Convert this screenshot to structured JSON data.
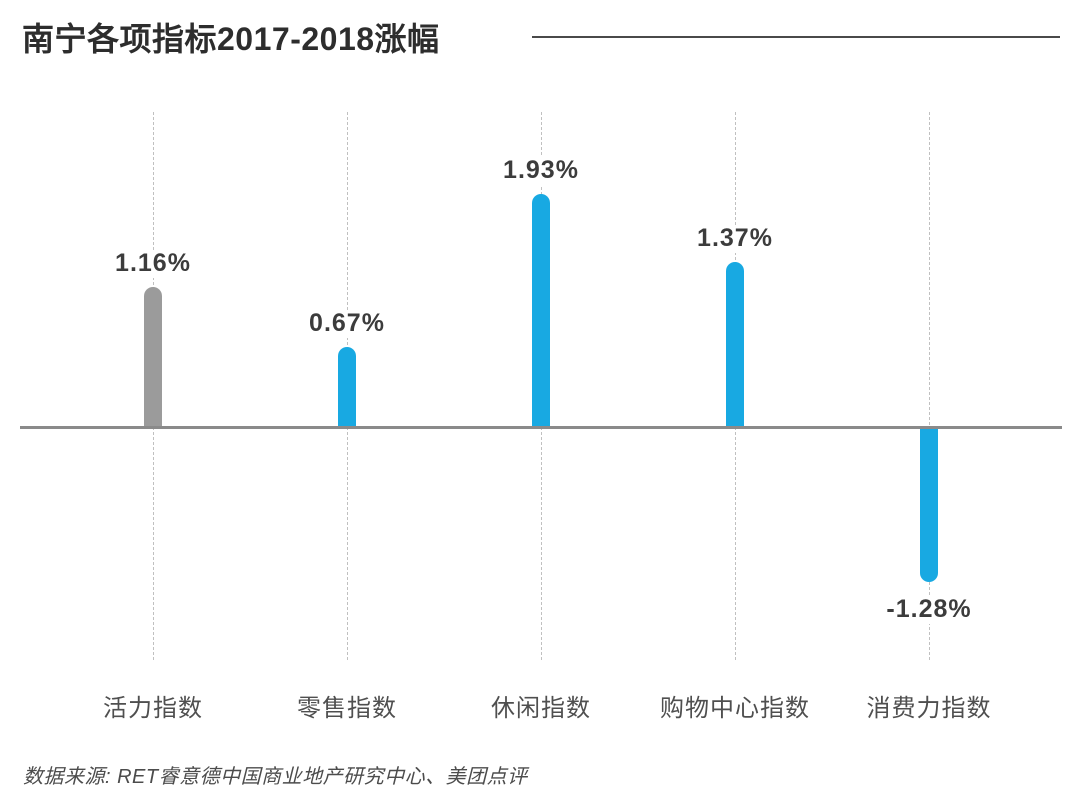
{
  "page": {
    "title": "南宁各项指标2017-2018涨幅",
    "source": "数据来源: RET睿意德中国商业地产研究中心、美团点评"
  },
  "colors": {
    "bar_blue": "#18a9e2",
    "bar_gray": "#9b9b9b",
    "axis_line": "#8a8a8a",
    "title_rule": "#4a4a4a",
    "grid_dash": "#c0c0c0",
    "title_text": "#2d2d2d",
    "value_text": "#3c3c3c",
    "category_text": "#4f4f4f",
    "source_text": "#4c4c4c"
  },
  "chart_data": {
    "type": "bar",
    "title": "南宁各项指标2017-2018涨幅",
    "categories": [
      "活力指数",
      "零售指数",
      "休闲指数",
      "购物中心指数",
      "消费力指数"
    ],
    "values": [
      1.16,
      0.67,
      1.93,
      1.37,
      -1.28
    ],
    "value_labels": [
      "1.16%",
      "0.67%",
      "1.93%",
      "1.37%",
      "-1.28%"
    ],
    "bar_colors": [
      "#9b9b9b",
      "#18a9e2",
      "#18a9e2",
      "#18a9e2",
      "#18a9e2"
    ],
    "unit": "%",
    "baseline": 0,
    "ylim": [
      -1.5,
      2.2
    ],
    "xlabel": "",
    "ylabel": "",
    "grid": "vertical-dashed",
    "legend": "none",
    "source": "数据来源: RET睿意德中国商业地产研究中心、美团点评"
  }
}
